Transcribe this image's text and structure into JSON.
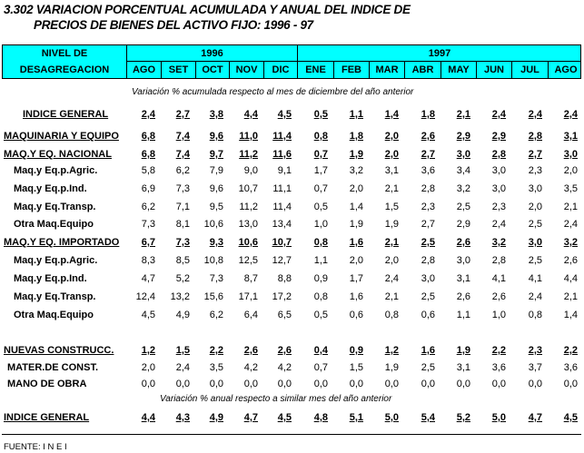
{
  "title": {
    "line1": "3.302  VARIACION  PORCENTUAL ACUMULADA Y ANUAL DEL INDICE DE",
    "line2": "PRECIOS DE  BIENES DEL ACTIVO FIJO: 1996 - 97"
  },
  "header": {
    "label1": "NIVEL DE",
    "label2": "DESAGREGACION",
    "year1": "1996",
    "year2": "1997",
    "months": [
      "AGO",
      "SET",
      "OCT",
      "NOV",
      "DIC",
      "ENE",
      "FEB",
      "MAR",
      "ABR",
      "MAY",
      "JUN",
      "JUL",
      "AGO"
    ]
  },
  "notes": {
    "accumulated": "Variación % acumulada respecto al mes de  diciembre del año anterior",
    "annual": "Variación % anual respecto a similar mes del año anterior"
  },
  "rows": [
    {
      "label": "INDICE GENERAL",
      "main": true,
      "values": [
        "2,4",
        "2,7",
        "3,8",
        "4,4",
        "4,5",
        "0,5",
        "1,1",
        "1,4",
        "1,8",
        "2,1",
        "2,4",
        "2,4",
        "2,4"
      ]
    },
    {
      "label": "MAQUINARIA Y EQUIPO",
      "main": true,
      "values": [
        "6,8",
        "7,4",
        "9,6",
        "11,0",
        "11,4",
        "0,8",
        "1,8",
        "2,0",
        "2,6",
        "2,9",
        "2,9",
        "2,8",
        "3,1"
      ]
    },
    {
      "label": "MAQ.Y EQ. NACIONAL",
      "main": true,
      "values": [
        "6,8",
        "7,4",
        "9,7",
        "11,2",
        "11,6",
        "0,7",
        "1,9",
        "2,0",
        "2,7",
        "3,0",
        "2,8",
        "2,7",
        "3,0"
      ]
    },
    {
      "label": "Maq.y Eq.p.Agric.",
      "values": [
        "5,8",
        "6,2",
        "7,9",
        "9,0",
        "9,1",
        "1,7",
        "3,2",
        "3,1",
        "3,6",
        "3,4",
        "3,0",
        "2,3",
        "2,0"
      ]
    },
    {
      "label": "Maq.y Eq.p.Ind.",
      "values": [
        "6,9",
        "7,3",
        "9,6",
        "10,7",
        "11,1",
        "0,7",
        "2,0",
        "2,1",
        "2,8",
        "3,2",
        "3,0",
        "3,0",
        "3,5"
      ]
    },
    {
      "label": "Maq.y Eq.Transp.",
      "values": [
        "6,2",
        "7,1",
        "9,5",
        "11,2",
        "11,4",
        "0,5",
        "1,4",
        "1,5",
        "2,3",
        "2,5",
        "2,3",
        "2,0",
        "2,1"
      ]
    },
    {
      "label": "Otra Maq.Equipo",
      "values": [
        "7,3",
        "8,1",
        "10,6",
        "13,0",
        "13,4",
        "1,0",
        "1,9",
        "1,9",
        "2,7",
        "2,9",
        "2,4",
        "2,5",
        "2,4"
      ]
    },
    {
      "label": "MAQ.Y EQ. IMPORTADO",
      "main": true,
      "values": [
        "6,7",
        "7,3",
        "9,3",
        "10,6",
        "10,7",
        "0,8",
        "1,6",
        "2,1",
        "2,5",
        "2,6",
        "3,2",
        "3,0",
        "3,2"
      ]
    },
    {
      "label": "Maq.y Eq.p.Agric.",
      "values": [
        "8,3",
        "8,5",
        "10,8",
        "12,5",
        "12,7",
        "1,1",
        "2,0",
        "2,0",
        "2,8",
        "3,0",
        "2,8",
        "2,5",
        "2,6"
      ]
    },
    {
      "label": "Maq.y Eq.p.Ind.",
      "values": [
        "4,7",
        "5,2",
        "7,3",
        "8,7",
        "8,8",
        "0,9",
        "1,7",
        "2,4",
        "3,0",
        "3,1",
        "4,1",
        "4,1",
        "4,4"
      ]
    },
    {
      "label": "Maq.y Eq.Transp.",
      "values": [
        "12,4",
        "13,2",
        "15,6",
        "17,1",
        "17,2",
        "0,8",
        "1,6",
        "2,1",
        "2,5",
        "2,6",
        "2,6",
        "2,4",
        "2,1"
      ]
    },
    {
      "label": "Otra Maq.Equipo",
      "values": [
        "4,5",
        "4,9",
        "6,2",
        "6,4",
        "6,5",
        "0,5",
        "0,6",
        "0,8",
        "0,6",
        "1,1",
        "1,0",
        "0,8",
        "1,4"
      ]
    },
    {
      "label": "NUEVAS CONSTRUCC.",
      "main": true,
      "values": [
        "1,2",
        "1,5",
        "2,2",
        "2,6",
        "2,6",
        "0,4",
        "0,9",
        "1,2",
        "1,6",
        "1,9",
        "2,2",
        "2,3",
        "2,2"
      ]
    },
    {
      "label": "MATER.DE CONST.",
      "values": [
        "2,0",
        "2,4",
        "3,5",
        "4,2",
        "4,2",
        "0,7",
        "1,5",
        "1,9",
        "2,5",
        "3,1",
        "3,6",
        "3,7",
        "3,6"
      ]
    },
    {
      "label": "MANO DE OBRA",
      "values": [
        "0,0",
        "0,0",
        "0,0",
        "0,0",
        "0,0",
        "0,0",
        "0,0",
        "0,0",
        "0,0",
        "0,0",
        "0,0",
        "0,0",
        "0,0"
      ]
    },
    {
      "label": "INDICE GENERAL",
      "main": true,
      "values": [
        "4,4",
        "4,3",
        "4,9",
        "4,7",
        "4,5",
        "4,8",
        "5,1",
        "5,0",
        "5,4",
        "5,2",
        "5,0",
        "4,7",
        "4,5"
      ]
    }
  ],
  "source": "FUENTE: I N E I"
}
